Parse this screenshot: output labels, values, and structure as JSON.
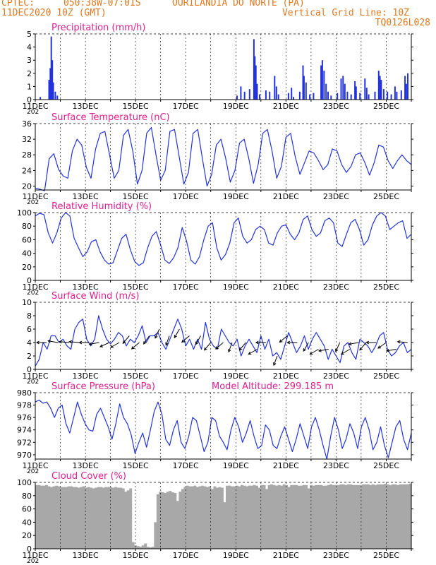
{
  "header": {
    "source": "CPTEC:",
    "coords": "050:38W-07:01S",
    "location": "OURILANDIA DO NORTE (PA)",
    "run": "11DEC2020 10Z (GMT)",
    "grid_line": "Vertical Grid Line: 10Z",
    "code": "TQ0126L028"
  },
  "x_axis": {
    "labels": [
      "11DEC",
      "13DEC",
      "15DEC",
      "17DEC",
      "19DEC",
      "21DEC",
      "23DEC",
      "25DEC"
    ],
    "year_fragment": "202",
    "days": 15
  },
  "colors": {
    "header": "#e07820",
    "title": "#e0208f",
    "series": "#2233dd",
    "bar": "#2233dd",
    "cloud": "#a8a8a8",
    "grid": "#000000"
  },
  "chart_data": [
    {
      "type": "bar",
      "title": "Precipitation (mm/h)",
      "ylim": [
        0,
        5
      ],
      "yticks": [
        0,
        1,
        2,
        3,
        4,
        5
      ],
      "x_units": "days since 11DEC 10Z",
      "bars": [
        [
          0.2,
          0.2
        ],
        [
          0.55,
          1.5
        ],
        [
          0.6,
          2.4
        ],
        [
          0.64,
          4.8
        ],
        [
          0.68,
          3.0
        ],
        [
          0.72,
          1.3
        ],
        [
          0.8,
          0.6
        ],
        [
          0.88,
          0.3
        ],
        [
          8.05,
          0.3
        ],
        [
          8.2,
          1.0
        ],
        [
          8.35,
          0.6
        ],
        [
          8.55,
          0.8
        ],
        [
          8.72,
          4.6
        ],
        [
          8.76,
          3.3
        ],
        [
          8.8,
          2.6
        ],
        [
          8.85,
          1.2
        ],
        [
          8.95,
          0.4
        ],
        [
          9.2,
          0.7
        ],
        [
          9.35,
          0.6
        ],
        [
          9.55,
          1.8
        ],
        [
          9.62,
          1.0
        ],
        [
          9.7,
          0.4
        ],
        [
          10.1,
          0.5
        ],
        [
          10.22,
          0.9
        ],
        [
          10.3,
          0.2
        ],
        [
          10.55,
          0.6
        ],
        [
          10.68,
          2.6
        ],
        [
          10.72,
          1.8
        ],
        [
          10.8,
          1.3
        ],
        [
          10.95,
          0.4
        ],
        [
          11.1,
          0.5
        ],
        [
          11.4,
          2.6
        ],
        [
          11.45,
          3.0
        ],
        [
          11.52,
          2.2
        ],
        [
          11.6,
          1.2
        ],
        [
          11.68,
          0.6
        ],
        [
          11.8,
          0.3
        ],
        [
          12.05,
          0.5
        ],
        [
          12.2,
          1.6
        ],
        [
          12.28,
          1.8
        ],
        [
          12.35,
          1.2
        ],
        [
          12.45,
          0.6
        ],
        [
          12.6,
          0.4
        ],
        [
          12.75,
          1.4
        ],
        [
          12.8,
          1.0
        ],
        [
          12.95,
          0.5
        ],
        [
          13.15,
          1.6
        ],
        [
          13.22,
          0.9
        ],
        [
          13.3,
          0.4
        ],
        [
          13.55,
          0.6
        ],
        [
          13.7,
          2.2
        ],
        [
          13.75,
          1.8
        ],
        [
          13.8,
          1.5
        ],
        [
          13.9,
          0.8
        ],
        [
          14.05,
          0.6
        ],
        [
          14.2,
          0.4
        ],
        [
          14.35,
          1.0
        ],
        [
          14.42,
          0.6
        ],
        [
          14.6,
          0.7
        ],
        [
          14.75,
          1.8
        ],
        [
          14.8,
          1.2
        ],
        [
          14.86,
          2.0
        ]
      ]
    },
    {
      "type": "line",
      "title": "Surface Temperature (nC)",
      "ylim": [
        19,
        36
      ],
      "yticks": [
        20,
        24,
        28,
        32,
        36
      ],
      "daily_min": [
        18.8,
        22.0,
        21.5,
        20.5,
        20.0,
        20.5,
        21.0,
        20.0,
        22.0,
        23.0,
        23.5,
        23.0,
        23.5,
        22.5,
        24.5
      ],
      "daily_max": [
        28.0,
        32.0,
        34.0,
        34.5,
        35.0,
        34.5,
        33.0,
        32.0,
        34.0,
        33.5,
        29.0,
        28.5,
        30.5,
        30.5,
        28.0
      ],
      "series": [
        {
          "values": [
            19.5,
            19.2,
            18.8,
            27,
            28.3,
            24.3,
            22.6,
            22,
            29,
            32,
            30.5,
            24.8,
            22,
            29.5,
            33.5,
            34,
            28,
            22,
            24,
            33,
            34.5,
            29,
            20.5,
            24,
            33.5,
            35,
            28,
            21.5,
            24,
            34,
            34.5,
            27.5,
            20.5,
            23.5,
            33.5,
            34.5,
            27,
            20,
            23,
            30.5,
            32,
            27.2,
            21,
            24,
            31,
            32,
            27,
            20.7,
            25.5,
            33.5,
            34.5,
            29,
            22,
            25,
            32.5,
            33.5,
            27.5,
            23,
            26,
            29,
            28.5,
            26.5,
            24.2,
            25.5,
            29.5,
            29,
            25.5,
            23.5,
            25,
            28,
            28.5,
            26,
            22.8,
            26,
            30.5,
            30,
            26.5,
            24.5,
            26.5,
            28,
            26.5,
            25.5
          ]
        }
      ]
    },
    {
      "type": "line",
      "title": "Relative Humidity (%)",
      "ylim": [
        0,
        100
      ],
      "yticks": [
        0,
        20,
        40,
        60,
        80,
        100
      ],
      "series": [
        {
          "values": [
            95,
            99,
            97,
            70,
            55,
            70,
            92,
            100,
            95,
            62,
            48,
            35,
            42,
            57,
            60,
            42,
            30,
            24,
            26,
            44,
            62,
            68,
            45,
            28,
            22,
            26,
            48,
            65,
            72,
            52,
            30,
            25,
            33,
            48,
            78,
            58,
            30,
            24,
            35,
            60,
            80,
            85,
            48,
            30,
            38,
            55,
            85,
            92,
            65,
            55,
            60,
            75,
            80,
            75,
            55,
            52,
            70,
            80,
            82,
            68,
            60,
            70,
            90,
            95,
            75,
            65,
            70,
            88,
            92,
            85,
            55,
            50,
            68,
            85,
            90,
            75,
            52,
            60,
            82,
            95,
            100,
            95,
            75,
            80,
            85,
            88,
            62,
            68
          ]
        }
      ]
    },
    {
      "type": "line",
      "title": "Surface Wind (m/s)",
      "ylim": [
        0,
        10
      ],
      "yticks": [
        0,
        2,
        4,
        6,
        8,
        10
      ],
      "series": [
        {
          "values": [
            0.5,
            1.5,
            4.0,
            3.0,
            5.0,
            5.0,
            4.0,
            4.5,
            3.5,
            3.0,
            6.0,
            7.0,
            7.5,
            4.5,
            3.5,
            4.5,
            8.0,
            6.0,
            4.5,
            3.8,
            4.5,
            5.5,
            5.0,
            3.5,
            4.5,
            4.0,
            5.0,
            6.5,
            4.0,
            5.0,
            5.0,
            5.5,
            4.0,
            3.0,
            4.5,
            6.0,
            7.5,
            6.0,
            3.5,
            4.5,
            3.0,
            4.5,
            3.0,
            7.0,
            4.5,
            3.5,
            3.0,
            6.0,
            5.0,
            4.0,
            3.5,
            4.5,
            2.0,
            3.5,
            4.5,
            3.5,
            2.5,
            5.0,
            3.0,
            4.5,
            2.0,
            2.5,
            1.5,
            3.5,
            5.5,
            4.0,
            2.5,
            3.5,
            5.0,
            3.0,
            4.5,
            5.5,
            4.5,
            3.5,
            1.5,
            3.0,
            2.0,
            1.0,
            3.5,
            4.0,
            2.5,
            1.5,
            4.5,
            4.0,
            3.5,
            2.5,
            3.5,
            5.0,
            5.5,
            3.0,
            2.0,
            2.5,
            3.5,
            4.0,
            2.5,
            3.0
          ]
        }
      ],
      "arrows": [
        [
          0.45,
          180,
          4
        ],
        [
          0.9,
          170,
          4
        ],
        [
          1.35,
          175,
          4
        ],
        [
          1.75,
          175,
          4
        ],
        [
          2.15,
          180,
          4
        ],
        [
          2.55,
          190,
          4
        ],
        [
          2.95,
          205,
          4
        ],
        [
          3.35,
          210,
          4
        ],
        [
          3.75,
          230,
          5
        ],
        [
          4.15,
          220,
          4
        ],
        [
          4.55,
          235,
          5
        ],
        [
          4.95,
          245,
          6
        ],
        [
          5.35,
          250,
          5
        ],
        [
          5.75,
          240,
          6
        ],
        [
          6.15,
          220,
          5
        ],
        [
          6.6,
          240,
          5
        ],
        [
          7.0,
          230,
          4
        ],
        [
          7.5,
          220,
          4
        ],
        [
          7.85,
          250,
          4
        ],
        [
          8.4,
          230,
          4
        ],
        [
          8.85,
          210,
          3
        ],
        [
          9.2,
          180,
          4
        ],
        [
          9.65,
          250,
          2
        ],
        [
          10.05,
          220,
          5
        ],
        [
          10.45,
          180,
          4
        ],
        [
          10.9,
          240,
          4
        ],
        [
          11.3,
          210,
          3
        ],
        [
          11.7,
          190,
          3
        ],
        [
          12.15,
          245,
          4
        ],
        [
          12.55,
          210,
          3
        ],
        [
          12.9,
          190,
          4
        ],
        [
          13.2,
          230,
          4
        ],
        [
          13.6,
          180,
          4
        ],
        [
          14.0,
          215,
          4
        ],
        [
          14.4,
          190,
          3
        ],
        [
          14.85,
          175,
          4
        ]
      ]
    },
    {
      "type": "line",
      "title": "Surface Pressure (hPa)",
      "annotation": "Model Altitude: 299.185 m",
      "ylim": [
        969.3,
        980
      ],
      "yticks": [
        970,
        972,
        974,
        976,
        978,
        980
      ],
      "series": [
        {
          "values": [
            978.5,
            978.8,
            978.3,
            978.5,
            977.5,
            976,
            977.5,
            978,
            975,
            973.5,
            976,
            978.5,
            976.5,
            975,
            974,
            973.8,
            976.5,
            977.5,
            976,
            974.5,
            972.5,
            975,
            978.2,
            976,
            975,
            973.2,
            970.2,
            972,
            973.5,
            971.2,
            974,
            977,
            978.5,
            976.5,
            972.5,
            971.5,
            974,
            975.5,
            972,
            971,
            973,
            976,
            975.5,
            973,
            970.5,
            972,
            976,
            975.5,
            973,
            972,
            970.8,
            974,
            976,
            974.5,
            972,
            973.5,
            975.5,
            973,
            971,
            971.5,
            974.8,
            974,
            971.5,
            971,
            973,
            974.5,
            972.5,
            970.5,
            972.5,
            975,
            973,
            971,
            974.5,
            976,
            974,
            971.5,
            969.3,
            973,
            976,
            974,
            971,
            972.5,
            975,
            973.5,
            971,
            974.5,
            976,
            974,
            970.8,
            972,
            974.5,
            971.5,
            969.5,
            972,
            974.5,
            975.5,
            972.5,
            970.8,
            973.5
          ]
        }
      ]
    },
    {
      "type": "area",
      "title": "Cloud Cover (%)",
      "ylim": [
        0,
        100
      ],
      "yticks": [
        0,
        20,
        40,
        60,
        80,
        100
      ],
      "series": [
        {
          "values": [
            96,
            96,
            95,
            95,
            96,
            94,
            93,
            94,
            95,
            94,
            93,
            93,
            93,
            94,
            94,
            93,
            93,
            92,
            93,
            94,
            92,
            93,
            92,
            91,
            92,
            93,
            93,
            92,
            93,
            93,
            93,
            92,
            93,
            92,
            92,
            91,
            86,
            88,
            91,
            10,
            5,
            4,
            3,
            5,
            8,
            3,
            2,
            3,
            40,
            82,
            86,
            85,
            84,
            86,
            87,
            85,
            84,
            72,
            86,
            90,
            93,
            95,
            94,
            94,
            95,
            93,
            94,
            95,
            94,
            93,
            94,
            90,
            94,
            92,
            93,
            92,
            70,
            95,
            95,
            94,
            94,
            95,
            94,
            96,
            95,
            94,
            95,
            95,
            96,
            95,
            92,
            96,
            96,
            90,
            96,
            97,
            96,
            95,
            96,
            95,
            97,
            96,
            93,
            96,
            96,
            96,
            95,
            95,
            96,
            96,
            91,
            96,
            95,
            96,
            96,
            96,
            95,
            95,
            96,
            97,
            96,
            96,
            96,
            97,
            97,
            96,
            97,
            97,
            96,
            96,
            96,
            96,
            97,
            97,
            97,
            96,
            97,
            96,
            97,
            97,
            97,
            98,
            97,
            96,
            97,
            97,
            96,
            97,
            97,
            97,
            97,
            98
          ]
        }
      ]
    }
  ]
}
